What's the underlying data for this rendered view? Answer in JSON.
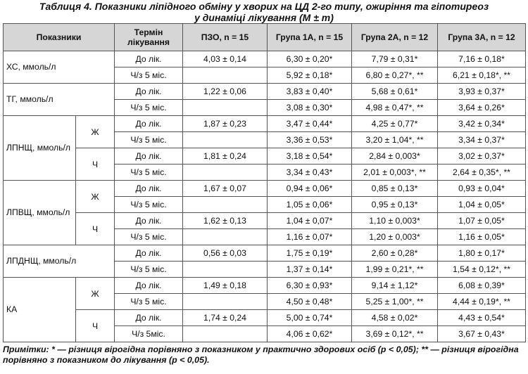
{
  "title_line1": "Таблиця 4. Показники ліпідного обміну у хворих на ЦД 2-го типу, ожиріння та гіпотиреоз",
  "title_line2": "у динаміці лікування (M ± m)",
  "headers": {
    "indicators": "Показники",
    "term": "Термін лікування",
    "pzo": "ПЗО, n = 15",
    "g1": "Група 1А, n = 15",
    "g2": "Група 2А, n = 12",
    "g3": "Група 3А, n = 12"
  },
  "rows": {
    "xs": {
      "label": "ХС, ммоль/л",
      "r1": {
        "term": "До лік.",
        "pzo": "4,03 ± 0,14",
        "g1": "6,30 ± 0,20*",
        "g2": "7,79 ± 0,31*",
        "g3": "7,16 ± 0,18*"
      },
      "r2": {
        "term": "Ч/з 5 міс.",
        "pzo": "",
        "g1": "5,92 ± 0,18*",
        "g2": "6,80 ± 0,27*, **",
        "g3": "6,21 ± 0,18*, **"
      }
    },
    "tg": {
      "label": "ТГ, ммоль/л",
      "r1": {
        "term": "До лік.",
        "pzo": "1,22 ± 0,06",
        "g1": "3,83 ± 0,40*",
        "g2": "5,68 ± 0,61*",
        "g3": "3,93 ± 0,37*"
      },
      "r2": {
        "term": "Ч/з 5 міс.",
        "pzo": "",
        "g1": "3,08 ± 0,30*",
        "g2": "4,98 ± 0,47*, **",
        "g3": "3,64 ± 0,26*"
      }
    },
    "lpnsch": {
      "label": "ЛПНЩ, ммоль/л",
      "zh": {
        "sex": "Ж",
        "r1": {
          "term": "До лік.",
          "pzo": "1,87 ± 0,23",
          "g1": "3,47 ± 0,44*",
          "g2": "4,25 ± 0,77*",
          "g3": "3,42 ± 0,34*"
        },
        "r2": {
          "term": "Ч/з 5 міс.",
          "pzo": "",
          "g1": "3,36 ± 0,53*",
          "g2": "3,20 ± 1,04*, **",
          "g3": "3,34 ± 0,37*"
        }
      },
      "ch": {
        "sex": "Ч",
        "r1": {
          "term": "До лік.",
          "pzo": "1,81 ± 0,24",
          "g1": "3,18 ± 0,54*",
          "g2": "2,84 ± 0,003*",
          "g3": "3,02 ± 0,37*"
        },
        "r2": {
          "term": "Ч/з 5 міс.",
          "pzo": "",
          "g1": "3,34 ± 0,43*",
          "g2": "2,01 ± 0,003*, **",
          "g3": "2,64 ± 0,35*, **"
        }
      }
    },
    "lpvsch": {
      "label": "ЛПВЩ, ммоль/л",
      "zh": {
        "sex": "Ж",
        "r1": {
          "term": "До лік.",
          "pzo": "1,67 ± 0,07",
          "g1": "0,94 ± 0,06*",
          "g2": "0,85 ± 0,13*",
          "g3": "0,93 ± 0,04*"
        },
        "r2": {
          "term": "Ч/з 5 міс.",
          "pzo": "",
          "g1": "1,05 ± 0,06*",
          "g2": "0,95 ± 0,13*",
          "g3": "1,04 ± 0,05*"
        }
      },
      "ch": {
        "sex": "Ч",
        "r1": {
          "term": "До лік.",
          "pzo": "1,62 ± 0,13",
          "g1": "1,04 ± 0,07*",
          "g2": "1,10 ± 0,003*",
          "g3": "1,07 ± 0,05*"
        },
        "r2": {
          "term": "Ч/з 5 міс.",
          "pzo": "",
          "g1": "1,16 ± 0,07*",
          "g2": "1,20 ± 0,003*",
          "g3": "1,16 ± 0,05*"
        }
      }
    },
    "lpdnsch": {
      "label": "ЛПДНЩ, ммоль/л",
      "r1": {
        "term": "До лік.",
        "pzo": "0,56 ± 0,03",
        "g1": "1,75 ± 0,19*",
        "g2": "2,60 ± 0,28*",
        "g3": "1,80 ± 0,17*"
      },
      "r2": {
        "term": "Ч/з 5 міс.",
        "pzo": "",
        "g1": "1,37 ± 0,14*",
        "g2": "1,99 ± 0,21*, **",
        "g3": "1,54 ± 0,12*, **"
      }
    },
    "ka": {
      "label": "КА",
      "zh": {
        "sex": "Ж",
        "r1": {
          "term": "До лік.",
          "pzo": "1,49 ± 0,18",
          "g1": "6,30 ± 0,93*",
          "g2": "9,14 ± 1,12*",
          "g3": "6,08 ± 0,39*"
        },
        "r2": {
          "term": "Ч/з 5 міс.",
          "pzo": "",
          "g1": "4,50 ± 0,48*",
          "g2": "5,25 ± 1,00*, **",
          "g3": "4,44 ± 0,19*, **"
        }
      },
      "ch": {
        "sex": "Ч",
        "r1": {
          "term": "До лік.",
          "pzo": "1,74 ± 0,24",
          "g1": "5,00 ± 0,74*",
          "g2": "4,58 ± 0,02*",
          "g3": "4,43 ± 0,54*"
        },
        "r2": {
          "term": "Ч/з 5міс.",
          "pzo": "",
          "g1": "4,06 ± 0,62*",
          "g2": "3,69 ± 0,12*, **",
          "g3": "3,67 ± 0,43*"
        }
      }
    }
  },
  "note": "Примітки: * — різниця вірогідна порівняно з показником у практично здорових осіб (p < 0,05); ** — різниця вірогідна порівняно з показником до лікування (p < 0,05)."
}
